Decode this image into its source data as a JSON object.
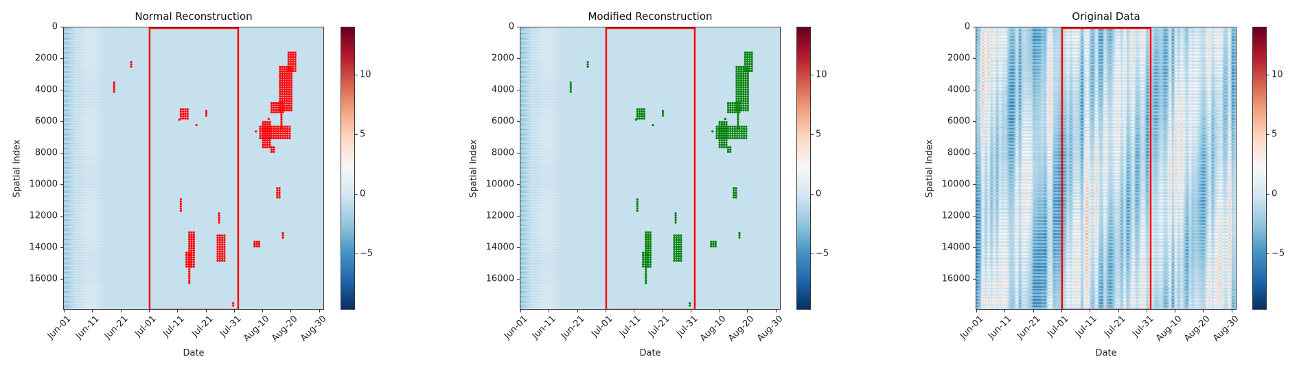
{
  "chart_data": [
    {
      "type": "heatmap",
      "title": "Normal Reconstruction",
      "xlabel": "Date",
      "ylabel": "Spatial Index",
      "x_tick_labels": [
        "Jun-01",
        "Jun-11",
        "Jun-21",
        "Jul-01",
        "Jul-11",
        "Jul-21",
        "Jul-31",
        "Aug-10",
        "Aug-20",
        "Aug-30"
      ],
      "x_range_days": [
        0,
        92
      ],
      "y_tick_labels": [
        "0",
        "2000",
        "4000",
        "6000",
        "8000",
        "10000",
        "12000",
        "14000",
        "16000"
      ],
      "y_ticks": [
        0,
        2000,
        4000,
        6000,
        8000,
        10000,
        12000,
        14000,
        16000
      ],
      "ylim": [
        17950,
        0
      ],
      "colormap": "RdBu_r",
      "clim": [
        -9.7,
        14
      ],
      "colorbar_ticks": [
        -5,
        0,
        5,
        10
      ],
      "colorbar_tick_labels": [
        "−5",
        "0",
        "5",
        "10"
      ],
      "highlight_box": {
        "start": "Jul-01",
        "end": "Aug-01",
        "color": "#ff0000"
      },
      "marker_color": "#ff0000",
      "field": "smooth",
      "anomaly_clusters": [
        {
          "day": [
            23.5,
            23.5
          ],
          "y": [
            2200,
            2600
          ]
        },
        {
          "day": [
            17.5,
            17.5
          ],
          "y": [
            3500,
            4200
          ]
        },
        {
          "day": [
            41,
            44
          ],
          "y": [
            5200,
            5900
          ]
        },
        {
          "day": [
            40.5,
            40.5
          ],
          "y": [
            5850,
            5850
          ]
        },
        {
          "day": [
            46.5,
            46.5
          ],
          "y": [
            6200,
            6200
          ]
        },
        {
          "day": [
            50,
            50
          ],
          "y": [
            5300,
            5650
          ]
        },
        {
          "day": [
            41,
            41
          ],
          "y": [
            10900,
            11700
          ]
        },
        {
          "day": [
            44,
            46
          ],
          "y": [
            13000,
            15200
          ]
        },
        {
          "day": [
            44,
            44
          ],
          "y": [
            15200,
            16300
          ]
        },
        {
          "day": [
            43,
            45
          ],
          "y": [
            14300,
            15200
          ]
        },
        {
          "day": [
            54.5,
            54.5
          ],
          "y": [
            11800,
            12500
          ]
        },
        {
          "day": [
            54,
            57
          ],
          "y": [
            13200,
            14800
          ]
        },
        {
          "day": [
            59.5,
            59.5
          ],
          "y": [
            17500,
            17700
          ]
        },
        {
          "day": [
            67,
            69
          ],
          "y": [
            13600,
            13950
          ]
        },
        {
          "day": [
            75,
            76.5
          ],
          "y": [
            10200,
            10900
          ]
        },
        {
          "day": [
            77,
            77
          ],
          "y": [
            13050,
            13400
          ]
        },
        {
          "day": [
            79,
            82
          ],
          "y": [
            1600,
            2900
          ]
        },
        {
          "day": [
            76,
            80
          ],
          "y": [
            2500,
            5300
          ]
        },
        {
          "day": [
            73,
            77
          ],
          "y": [
            4800,
            5400
          ]
        },
        {
          "day": [
            76.5,
            76.5
          ],
          "y": [
            5400,
            6500
          ]
        },
        {
          "day": [
            69,
            80
          ],
          "y": [
            6300,
            7100
          ]
        },
        {
          "day": [
            70,
            73
          ],
          "y": [
            6000,
            7700
          ]
        },
        {
          "day": [
            73,
            74.5
          ],
          "y": [
            7600,
            7900
          ]
        },
        {
          "day": [
            67.5,
            67.5
          ],
          "y": [
            6600,
            6600
          ]
        },
        {
          "day": [
            72,
            72
          ],
          "y": [
            5800,
            5800
          ]
        }
      ]
    },
    {
      "type": "heatmap",
      "title": "Modified Reconstruction",
      "xlabel": "Date",
      "ylabel": "Spatial Index",
      "x_tick_labels": [
        "Jun-01",
        "Jun-11",
        "Jun-21",
        "Jul-01",
        "Jul-11",
        "Jul-21",
        "Jul-31",
        "Aug-10",
        "Aug-20",
        "Aug-30"
      ],
      "x_range_days": [
        0,
        92
      ],
      "y_tick_labels": [
        "0",
        "2000",
        "4000",
        "6000",
        "8000",
        "10000",
        "12000",
        "14000",
        "16000"
      ],
      "y_ticks": [
        0,
        2000,
        4000,
        6000,
        8000,
        10000,
        12000,
        14000,
        16000
      ],
      "ylim": [
        17950,
        0
      ],
      "colormap": "RdBu_r",
      "clim": [
        -9.7,
        14
      ],
      "colorbar_ticks": [
        -5,
        0,
        5,
        10
      ],
      "colorbar_tick_labels": [
        "−5",
        "0",
        "5",
        "10"
      ],
      "highlight_box": {
        "start": "Jul-01",
        "end": "Aug-01",
        "color": "#ff0000"
      },
      "marker_color": "#008000",
      "field": "smooth",
      "anomaly_clusters": "same_as_normal"
    },
    {
      "type": "heatmap",
      "title": "Original Data",
      "xlabel": "Date",
      "ylabel": "Spatial Index",
      "x_tick_labels": [
        "Jun-01",
        "Jun-11",
        "Jun-21",
        "Jul-01",
        "Jul-11",
        "Jul-21",
        "Jul-31",
        "Aug-10",
        "Aug-20",
        "Aug-30"
      ],
      "x_range_days": [
        0,
        92
      ],
      "y_tick_labels": [
        "0",
        "2000",
        "4000",
        "6000",
        "8000",
        "10000",
        "12000",
        "14000",
        "16000"
      ],
      "y_ticks": [
        0,
        2000,
        4000,
        6000,
        8000,
        10000,
        12000,
        14000,
        16000
      ],
      "ylim": [
        17950,
        0
      ],
      "colormap": "RdBu_r",
      "clim": [
        -9.7,
        14
      ],
      "colorbar_ticks": [
        -5,
        0,
        5,
        10
      ],
      "colorbar_tick_labels": [
        "−5",
        "0",
        "5",
        "10"
      ],
      "highlight_box": {
        "start": "Jul-01",
        "end": "Aug-01",
        "color": "#ff0000"
      },
      "field": "striped",
      "anomaly_clusters": []
    }
  ]
}
